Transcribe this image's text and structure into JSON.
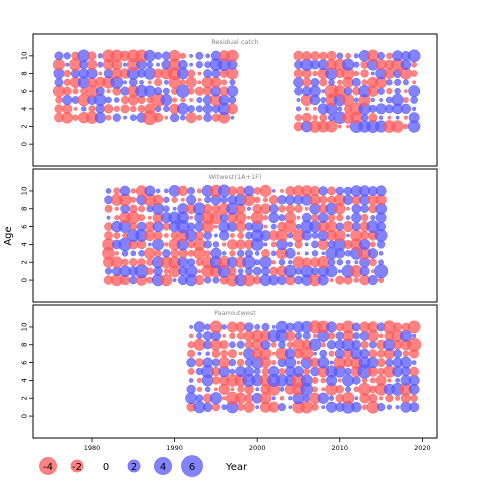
{
  "chart_data": {
    "type": "scatter",
    "subtype": "bubble-residuals",
    "ylabel": "Age",
    "xlabel": "",
    "x_ticks": [
      1980,
      1990,
      2000,
      2010,
      2020
    ],
    "y_ticks": [
      0,
      2,
      4,
      6,
      8,
      10
    ],
    "xlim": [
      1973,
      2022
    ],
    "ylim": [
      -1,
      11
    ],
    "colors": {
      "negative": "#ff5a5a",
      "positive": "#5a5aff"
    },
    "panels": [
      {
        "title": "Residual catch",
        "segments": [
          {
            "years": [
              1976,
              1997
            ],
            "ages": [
              3,
              10
            ],
            "seed": 11,
            "big": [
              [
                1987,
                3,
                5.5
              ],
              [
                1988,
                5,
                5
              ],
              [
                1991,
                6,
                4.5
              ],
              [
                1975,
                10,
                4
              ],
              [
                1978,
                9,
                4
              ],
              [
                1985,
                10,
                4
              ]
            ]
          },
          {
            "years": [
              2005,
              2019
            ],
            "ages": [
              2,
              10
            ],
            "seed": 23,
            "big": [
              [
                2009,
                6,
                5
              ],
              [
                2010,
                3,
                4
              ],
              [
                2019,
                10,
                4
              ],
              [
                2006,
                9,
                4
              ]
            ]
          }
        ]
      },
      {
        "title": "Witwest(1A+1F)",
        "segments": [
          {
            "years": [
              1982,
              2015
            ],
            "ages": [
              0,
              10
            ],
            "seed": 37,
            "big": [
              [
                1986,
                1,
                5
              ],
              [
                1984,
                4,
                4.5
              ],
              [
                1991,
                6,
                4.5
              ],
              [
                2015,
                1,
                5
              ],
              [
                1999,
                2,
                4.5
              ],
              [
                1996,
                10,
                4
              ],
              [
                1987,
                9,
                4
              ],
              [
                1999,
                0,
                4
              ]
            ]
          }
        ]
      },
      {
        "title": "Paamiutwest",
        "segments": [
          {
            "years": [
              1992,
              2019
            ],
            "ages": [
              1,
              10
            ],
            "seed": 51,
            "big": [
              [
                2005,
                0,
                4.5
              ],
              [
                2005,
                4,
                5
              ],
              [
                2013,
                5,
                5
              ],
              [
                2019,
                8,
                5
              ],
              [
                1997,
                4,
                4
              ],
              [
                2010,
                6,
                4
              ],
              [
                2019,
                10,
                4
              ]
            ]
          }
        ]
      }
    ],
    "legend": {
      "values": [
        -4,
        -2,
        0,
        2,
        4,
        6
      ],
      "labels": [
        "-4",
        "-2",
        "0",
        "2",
        "4",
        "6"
      ],
      "year_label": "Year"
    }
  }
}
